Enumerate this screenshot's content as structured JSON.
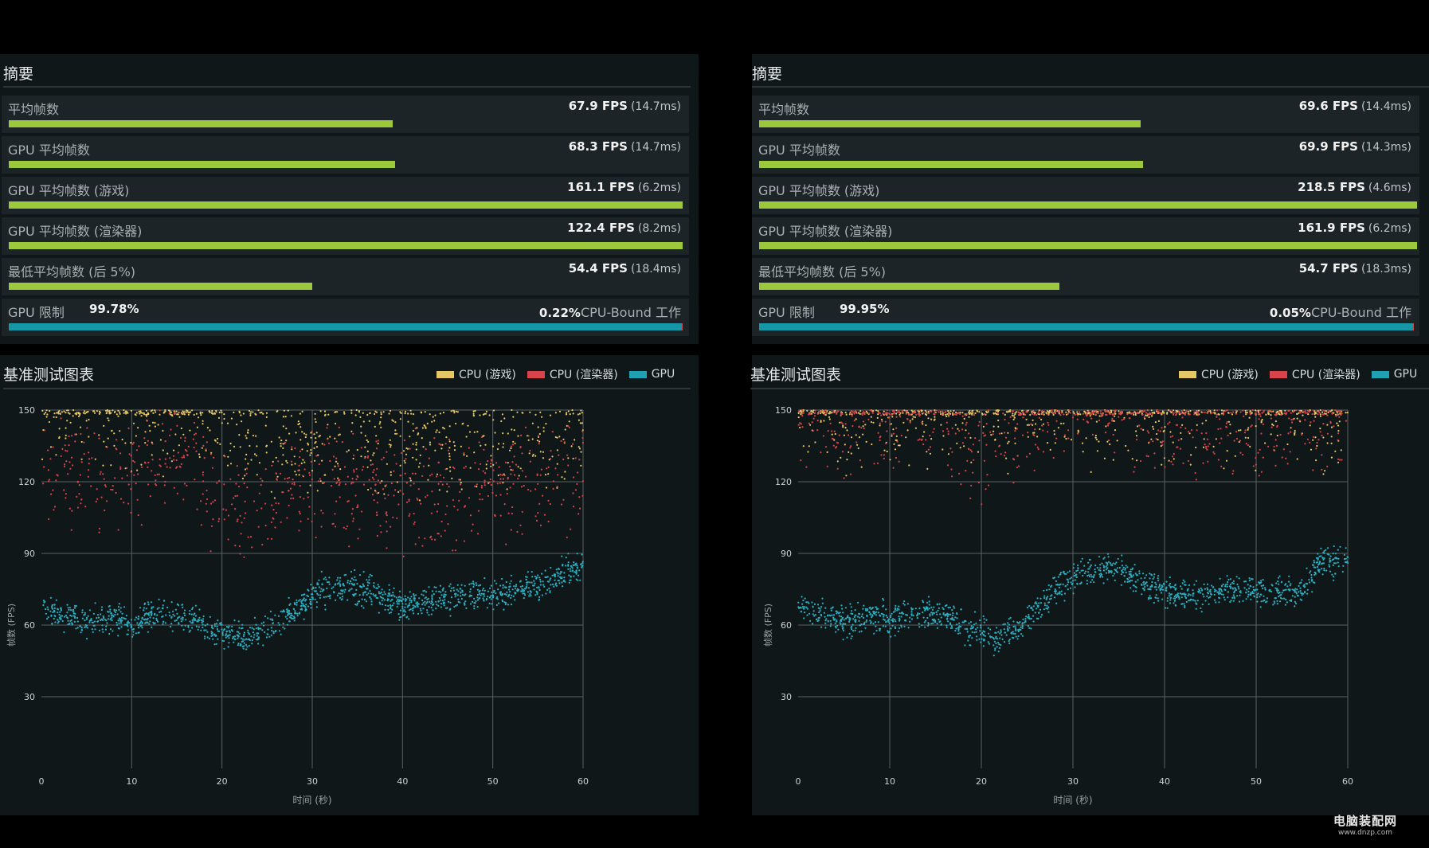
{
  "panels": [
    {
      "summary_title": "摘要",
      "stats": [
        {
          "label": "平均帧数",
          "fps": "67.9 FPS",
          "ms": "(14.7ms)",
          "bar_fraction": 0.57
        },
        {
          "label": "GPU 平均帧数",
          "fps": "68.3 FPS",
          "ms": "(14.7ms)",
          "bar_fraction": 0.573
        },
        {
          "label": "GPU 平均帧数 (游戏)",
          "fps": "161.1 FPS",
          "ms": "(6.2ms)",
          "bar_fraction": 1.0
        },
        {
          "label": "GPU 平均帧数 (渲染器)",
          "fps": "122.4 FPS",
          "ms": "(8.2ms)",
          "bar_fraction": 1.0
        },
        {
          "label": "最低平均帧数 (后 5%)",
          "fps": "54.4 FPS",
          "ms": "(18.4ms)",
          "bar_fraction": 0.45
        }
      ],
      "limit": {
        "label": "GPU 限制",
        "gpu_pct": "99.78%",
        "cpu_pct": "0.22%",
        "cpu_label": "CPU-Bound 工作",
        "gpu_fraction": 0.9978
      }
    },
    {
      "summary_title": "摘要",
      "stats": [
        {
          "label": "平均帧数",
          "fps": "69.6 FPS",
          "ms": "(14.4ms)",
          "bar_fraction": 0.58
        },
        {
          "label": "GPU 平均帧数",
          "fps": "69.9 FPS",
          "ms": "(14.3ms)",
          "bar_fraction": 0.583
        },
        {
          "label": "GPU 平均帧数 (游戏)",
          "fps": "218.5 FPS",
          "ms": "(4.6ms)",
          "bar_fraction": 1.0
        },
        {
          "label": "GPU 平均帧数 (渲染器)",
          "fps": "161.9 FPS",
          "ms": "(6.2ms)",
          "bar_fraction": 1.0
        },
        {
          "label": "最低平均帧数 (后 5%)",
          "fps": "54.7 FPS",
          "ms": "(18.3ms)",
          "bar_fraction": 0.456
        }
      ],
      "limit": {
        "label": "GPU 限制",
        "gpu_pct": "99.95%",
        "cpu_pct": "0.05%",
        "cpu_label": "CPU-Bound 工作",
        "gpu_fraction": 0.9995
      }
    }
  ],
  "chart_title": "基准测试图表",
  "legend": [
    {
      "label": "CPU (游戏)",
      "color": "#e5c766"
    },
    {
      "label": "CPU (渲染器)",
      "color": "#d9434b"
    },
    {
      "label": "GPU",
      "color": "#1fa1b3"
    }
  ],
  "colors": {
    "bar_green": "#9cc83c",
    "gpu_blue": "#1597a8",
    "background": "#101719"
  },
  "chart_data": [
    {
      "type": "scatter",
      "title": "基准测试图表",
      "xlabel": "时间 (秒)",
      "ylabel": "帧数 (FPS)",
      "xlim": [
        0,
        60
      ],
      "ylim": [
        0,
        150
      ],
      "x_ticks": [
        0,
        10,
        20,
        30,
        40,
        50,
        60
      ],
      "y_ticks": [
        30,
        60,
        90,
        120,
        150
      ],
      "grid": true,
      "legend_position": "top-right",
      "series": [
        {
          "name": "GPU",
          "x": [
            0,
            2,
            5,
            8,
            10,
            13,
            16,
            19,
            22,
            25,
            28,
            31,
            34,
            37,
            40,
            43,
            46,
            49,
            52,
            55,
            57,
            60
          ],
          "y": [
            70,
            64,
            62,
            64,
            60,
            65,
            63,
            58,
            54,
            58,
            66,
            75,
            76,
            73,
            68,
            70,
            72,
            72,
            74,
            76,
            80,
            85
          ]
        },
        {
          "name": "CPU (渲染器)",
          "x": [
            0,
            5,
            10,
            15,
            20,
            25,
            30,
            35,
            40,
            45,
            50,
            55,
            60
          ],
          "y": [
            130,
            118,
            122,
            132,
            108,
            112,
            120,
            118,
            115,
            115,
            118,
            120,
            125
          ]
        },
        {
          "name": "CPU (游戏)",
          "x": [
            0,
            5,
            10,
            15,
            20,
            25,
            30,
            35,
            40,
            45,
            50,
            55,
            60
          ],
          "y": [
            150,
            150,
            150,
            150,
            148,
            138,
            138,
            140,
            140,
            138,
            140,
            140,
            142
          ]
        }
      ]
    },
    {
      "type": "scatter",
      "title": "基准测试图表",
      "xlabel": "时间 (秒)",
      "ylabel": "帧数 (FPS)",
      "xlim": [
        0,
        60
      ],
      "ylim": [
        0,
        150
      ],
      "x_ticks": [
        0,
        10,
        20,
        30,
        40,
        50,
        60
      ],
      "y_ticks": [
        30,
        60,
        90,
        120,
        150
      ],
      "grid": true,
      "legend_position": "top-right",
      "series": [
        {
          "name": "GPU",
          "x": [
            0,
            2,
            5,
            8,
            10,
            13,
            16,
            19,
            22,
            25,
            28,
            31,
            34,
            37,
            40,
            43,
            46,
            49,
            52,
            55,
            57,
            60
          ],
          "y": [
            70,
            64,
            62,
            64,
            62,
            66,
            64,
            58,
            54,
            62,
            75,
            82,
            84,
            80,
            74,
            72,
            74,
            74,
            74,
            74,
            86,
            88
          ]
        },
        {
          "name": "CPU (渲染器)",
          "x": [
            0,
            5,
            10,
            15,
            18,
            20,
            23,
            25,
            30,
            35,
            40,
            45,
            50,
            55,
            60
          ],
          "y": [
            148,
            145,
            150,
            150,
            138,
            132,
            140,
            150,
            150,
            150,
            148,
            145,
            142,
            148,
            150
          ]
        },
        {
          "name": "CPU (游戏)",
          "x": [
            0,
            10,
            20,
            30,
            40,
            50,
            60
          ],
          "y": [
            150,
            150,
            150,
            150,
            150,
            150,
            150
          ]
        }
      ]
    }
  ],
  "watermark": {
    "main": "电脑装配网",
    "sub": "www.dnzp.com"
  }
}
